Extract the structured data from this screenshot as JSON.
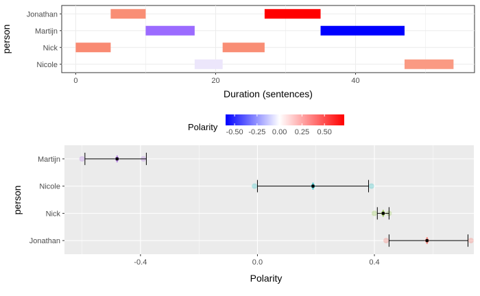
{
  "chart_data": [
    {
      "type": "bar",
      "orientation": "horizontal-segments",
      "xlabel": "Duration (sentences)",
      "ylabel": "person",
      "xlim": [
        -2,
        57
      ],
      "x_ticks": [
        0,
        20,
        40
      ],
      "grid": true,
      "categories": [
        "Nicole",
        "Nick",
        "Martijn",
        "Jonathan"
      ],
      "segments": [
        {
          "person": "Jonathan",
          "start": 5,
          "end": 10,
          "polarity": 0.4,
          "color": "#f98e75"
        },
        {
          "person": "Jonathan",
          "start": 27,
          "end": 35,
          "polarity": 0.72,
          "color": "#ff0000"
        },
        {
          "person": "Martijn",
          "start": 10,
          "end": 17,
          "polarity": -0.45,
          "color": "#9b6bff"
        },
        {
          "person": "Martijn",
          "start": 35,
          "end": 47,
          "polarity": -0.6,
          "color": "#0000ff"
        },
        {
          "person": "Nick",
          "start": 0,
          "end": 5,
          "polarity": 0.42,
          "color": "#f98a72"
        },
        {
          "person": "Nick",
          "start": 21,
          "end": 27,
          "polarity": 0.4,
          "color": "#f98e75"
        },
        {
          "person": "Nicole",
          "start": 17,
          "end": 21,
          "polarity": -0.05,
          "color": "#ece6fb"
        },
        {
          "person": "Nicole",
          "start": 47,
          "end": 54,
          "polarity": 0.35,
          "color": "#fa9a83"
        }
      ]
    },
    {
      "type": "errorbar",
      "xlabel": "Polarity",
      "ylabel": "person",
      "xlim": [
        -0.66,
        0.74
      ],
      "x_ticks": [
        -0.4,
        0.0,
        0.4
      ],
      "x_tick_labels": [
        "-0.4",
        "0.0",
        "0.4"
      ],
      "grid": true,
      "categories": [
        "Jonathan",
        "Nick",
        "Nicole",
        "Martijn"
      ],
      "points": [
        {
          "person": "Martijn",
          "mean": -0.48,
          "low": -0.59,
          "high": -0.38,
          "point_color": "#b883e6",
          "raw": [
            -0.6,
            -0.39
          ]
        },
        {
          "person": "Nicole",
          "mean": 0.19,
          "low": 0.0,
          "high": 0.38,
          "point_color": "#3ec5c9",
          "raw": [
            -0.01,
            0.39
          ]
        },
        {
          "person": "Nick",
          "mean": 0.43,
          "low": 0.41,
          "high": 0.45,
          "point_color": "#9bc95a",
          "raw": [
            0.4,
            0.45
          ]
        },
        {
          "person": "Jonathan",
          "mean": 0.58,
          "low": 0.45,
          "high": 0.72,
          "point_color": "#f5837a",
          "raw": [
            0.44,
            0.73
          ]
        }
      ]
    }
  ],
  "legend": {
    "title": "Polarity",
    "placement": "top",
    "range": [
      -0.6,
      0.72
    ],
    "ticks": [
      -0.5,
      -0.25,
      0.0,
      0.25,
      0.5
    ],
    "tick_labels": [
      "-0.50",
      "-0.25",
      "0.00",
      "0.25",
      "0.50"
    ],
    "low_color": "#0000ff",
    "mid_color": "#ffffff",
    "high_color": "#ff0000"
  }
}
